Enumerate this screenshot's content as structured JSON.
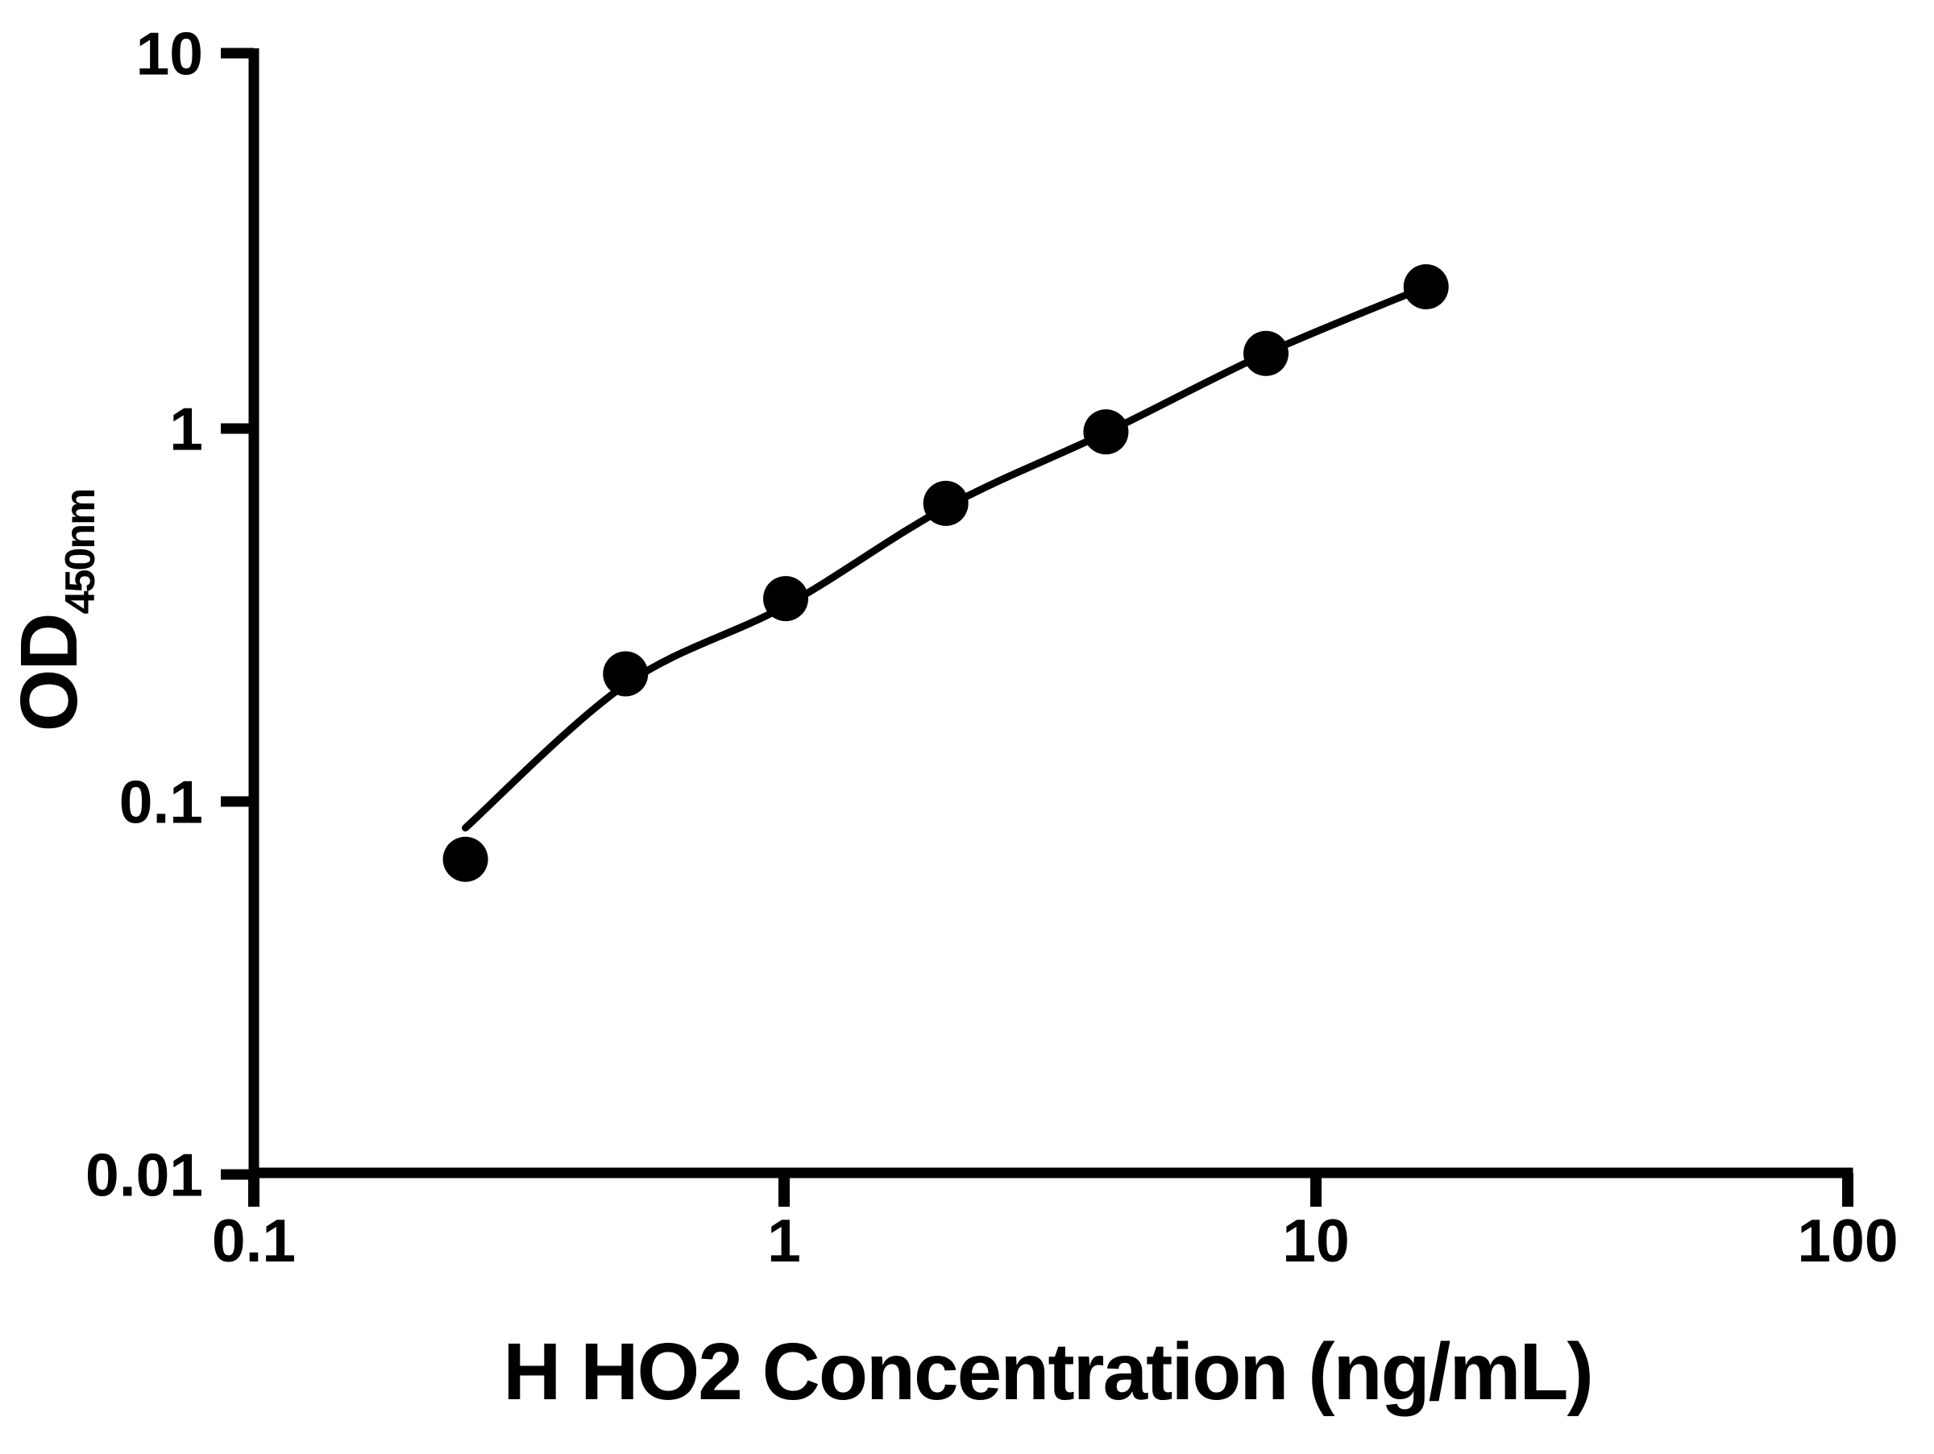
{
  "figure": {
    "background": "#ffffff",
    "foreground": "#000000"
  },
  "chart_data": {
    "type": "scatter",
    "title": "",
    "xlabel": "H HO2 Concentration (ng/mL)",
    "ylabel": "OD450nm",
    "ylabel_main": "OD",
    "ylabel_sub": "450nm",
    "x_scale": "log",
    "y_scale": "log",
    "xlim": [
      0.1,
      100
    ],
    "ylim": [
      0.01,
      10
    ],
    "grid": false,
    "legend": false,
    "x_ticks": {
      "values": [
        0.1,
        1,
        10,
        100
      ],
      "labels": [
        "0.1",
        "1",
        "10",
        "100"
      ]
    },
    "y_ticks": {
      "values": [
        10,
        1,
        0.1,
        0.01
      ],
      "labels": [
        "10",
        "1",
        "0.1",
        "0.01"
      ]
    },
    "series": [
      {
        "name": "standard curve points",
        "marker": "filled-circle",
        "color": "#000000",
        "points": [
          {
            "x": 0.25,
            "y": 0.07
          },
          {
            "x": 0.5,
            "y": 0.22
          },
          {
            "x": 1,
            "y": 0.35
          },
          {
            "x": 2,
            "y": 0.63
          },
          {
            "x": 4,
            "y": 0.98
          },
          {
            "x": 8,
            "y": 1.59
          },
          {
            "x": 16,
            "y": 2.4
          }
        ]
      }
    ],
    "fit_curve": {
      "color": "#000000",
      "points": [
        {
          "x": 0.25,
          "y": 0.085
        },
        {
          "x": 0.5,
          "y": 0.206
        },
        {
          "x": 1,
          "y": 0.335
        },
        {
          "x": 2,
          "y": 0.615
        },
        {
          "x": 4,
          "y": 0.975
        },
        {
          "x": 8,
          "y": 1.59
        },
        {
          "x": 16,
          "y": 2.4
        }
      ]
    }
  }
}
